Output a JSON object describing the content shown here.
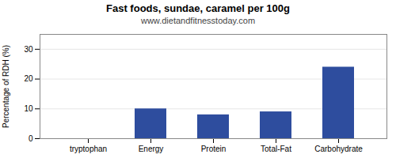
{
  "chart_data": {
    "type": "bar",
    "title": "Fast foods, sundae, caramel per 100g",
    "subtitle": "www.dietandfitnesstoday.com",
    "categories": [
      "tryptophan",
      "Energy",
      "Protein",
      "Total-Fat",
      "Carbohydrate"
    ],
    "values": [
      0,
      10,
      8,
      9,
      24
    ],
    "color": "#2e4d9e",
    "ylabel": "Percentage of RDH (%)",
    "ylim": [
      0,
      35
    ],
    "yticks": [
      0,
      10,
      20,
      30
    ],
    "grid": true
  }
}
